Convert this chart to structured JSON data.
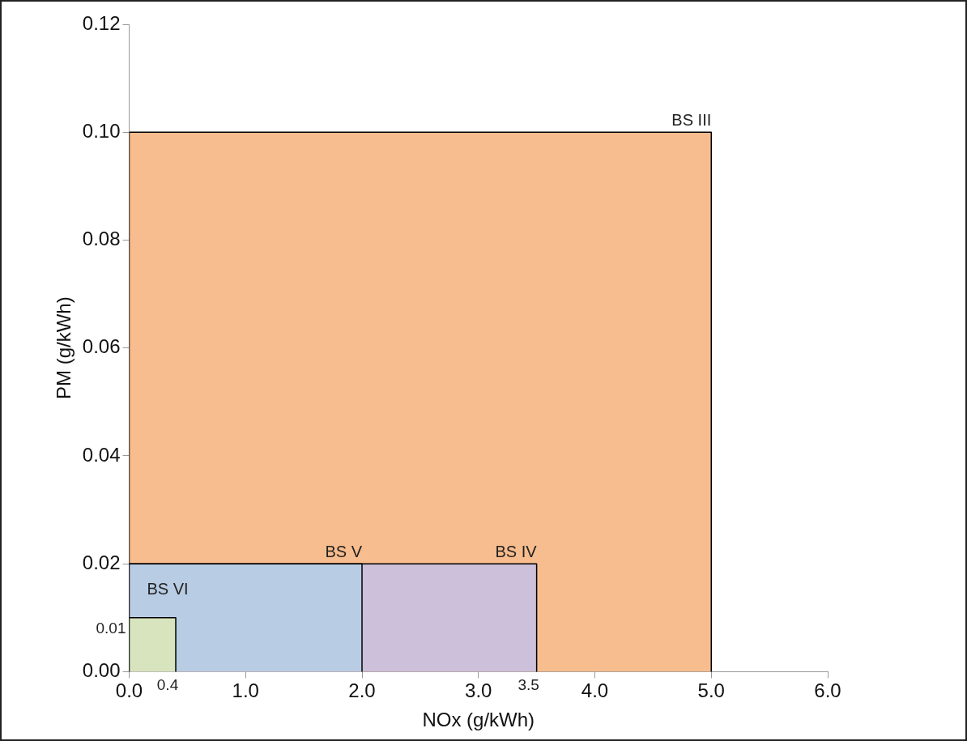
{
  "chart_data": {
    "type": "area",
    "xlabel": "NOx (g/kWh)",
    "ylabel": "PM (g/kWh)",
    "xlim": [
      0,
      6
    ],
    "xticks": [
      {
        "value": 0,
        "label": "0.0"
      },
      {
        "value": 1,
        "label": "1.0"
      },
      {
        "value": 2,
        "label": "2.0"
      },
      {
        "value": 3,
        "label": "3.0"
      },
      {
        "value": 4,
        "label": "4.0"
      },
      {
        "value": 5,
        "label": "5.0"
      },
      {
        "value": 6,
        "label": "6.0"
      }
    ],
    "ylim": [
      0,
      0.12
    ],
    "yticks": [
      {
        "value": 0,
        "label": "0.00"
      },
      {
        "value": 0.02,
        "label": "0.02"
      },
      {
        "value": 0.04,
        "label": "0.04"
      },
      {
        "value": 0.06,
        "label": "0.06"
      },
      {
        "value": 0.08,
        "label": "0.08"
      },
      {
        "value": 0.1,
        "label": "0.10"
      },
      {
        "value": 0.12,
        "label": "0.12"
      }
    ],
    "grid": false,
    "legend": false,
    "marker": "none",
    "series": [
      {
        "name": "BS III",
        "color": "#f8bd8e",
        "x": [
          0,
          0,
          5,
          5
        ],
        "values": [
          0,
          0.1,
          0.1,
          0
        ]
      },
      {
        "name": "BS IV",
        "color": "#ccc0da",
        "x": [
          0,
          0,
          3.5,
          3.5
        ],
        "values": [
          0,
          0.02,
          0.02,
          0
        ]
      },
      {
        "name": "BS V",
        "color": "#b8cce4",
        "x": [
          0,
          0,
          2,
          2
        ],
        "values": [
          0,
          0.02,
          0.02,
          0
        ]
      },
      {
        "name": "BS VI",
        "color": "#d7e4bd",
        "x": [
          0,
          0,
          0.4,
          0.4
        ],
        "values": [
          0,
          0.01,
          0.01,
          0
        ]
      }
    ],
    "annotations": [
      {
        "text": "0.01",
        "x": 0,
        "y": 0.01
      },
      {
        "text": "0.4",
        "x": 0.4,
        "y": 0
      },
      {
        "text": "3.5",
        "x": 3.5,
        "y": 0
      }
    ]
  }
}
